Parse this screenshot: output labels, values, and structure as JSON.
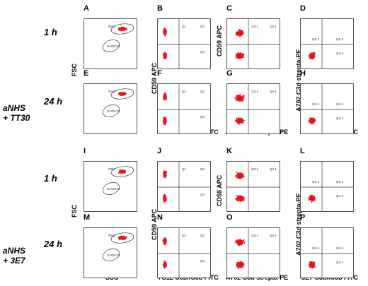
{
  "groups": [
    {
      "line1": "aNHS",
      "line2": "+ TT30"
    },
    {
      "line1": "aNHS",
      "line2": "+ 3E7"
    }
  ],
  "times": [
    "1  h",
    "24 h",
    "1  h",
    "24 h"
  ],
  "axis_y": {
    "fsc": "FSC",
    "cd59_apc": "CD59 APC",
    "a702": "A702 C3d strepta-PE"
  },
  "axis_x": {
    "ssc": "SSC",
    "c3b_7c12": "7C12 C3b/iC3b FITC",
    "a702": "A702 C3d strepta-PE",
    "c3b_3e7": "3E7 C3b/iC3b FITC"
  },
  "panels": [
    {
      "letter": "A",
      "type": "fsc",
      "labels": [
        "RBC",
        "GHOSTS"
      ]
    },
    {
      "letter": "B",
      "type": "quad2",
      "labels": [
        "Q1",
        "Q2",
        "Q4"
      ]
    },
    {
      "letter": "C",
      "type": "quad2",
      "labels": [
        "Q3-1",
        "Q4-1"
      ]
    },
    {
      "letter": "D",
      "type": "quad1",
      "labels": [
        "Q1-2",
        "Q2-2",
        "Q4-2"
      ]
    },
    {
      "letter": "E",
      "type": "fsc",
      "labels": [
        "RBC",
        "GHOSTS"
      ]
    },
    {
      "letter": "F",
      "type": "quad2",
      "labels": [
        "Q1",
        "Q2",
        "Q4"
      ]
    },
    {
      "letter": "G",
      "type": "quad2",
      "labels": [
        "Q3-1",
        "Q4-1"
      ]
    },
    {
      "letter": "H",
      "type": "quad1",
      "labels": [
        "Q1-2",
        "Q2-2",
        "Q4-2"
      ]
    },
    {
      "letter": "I",
      "type": "fsc",
      "labels": [
        "RBC",
        "GHOSTS"
      ]
    },
    {
      "letter": "J",
      "type": "quad2",
      "labels": [
        "Q1",
        "Q2",
        "Q4"
      ]
    },
    {
      "letter": "K",
      "type": "quad2",
      "labels": [
        "Q3-1",
        "Q4-1"
      ]
    },
    {
      "letter": "L",
      "type": "quad1",
      "labels": [
        "Q1-2",
        "Q2-2",
        "Q4-2"
      ]
    },
    {
      "letter": "M",
      "type": "fsc",
      "labels": [
        "RBC",
        "GHOSTS"
      ]
    },
    {
      "letter": "N",
      "type": "quad2",
      "labels": [
        "Q1",
        "Q2",
        "Q4"
      ]
    },
    {
      "letter": "O",
      "type": "quad2",
      "labels": [
        "Q3-1",
        "Q4-1"
      ]
    },
    {
      "letter": "P",
      "type": "quad1",
      "labels": [
        "Q1-2",
        "Q2-2",
        "Q4-2"
      ]
    }
  ],
  "colors": {
    "dots": "#e8141b",
    "gate": "#333333"
  }
}
